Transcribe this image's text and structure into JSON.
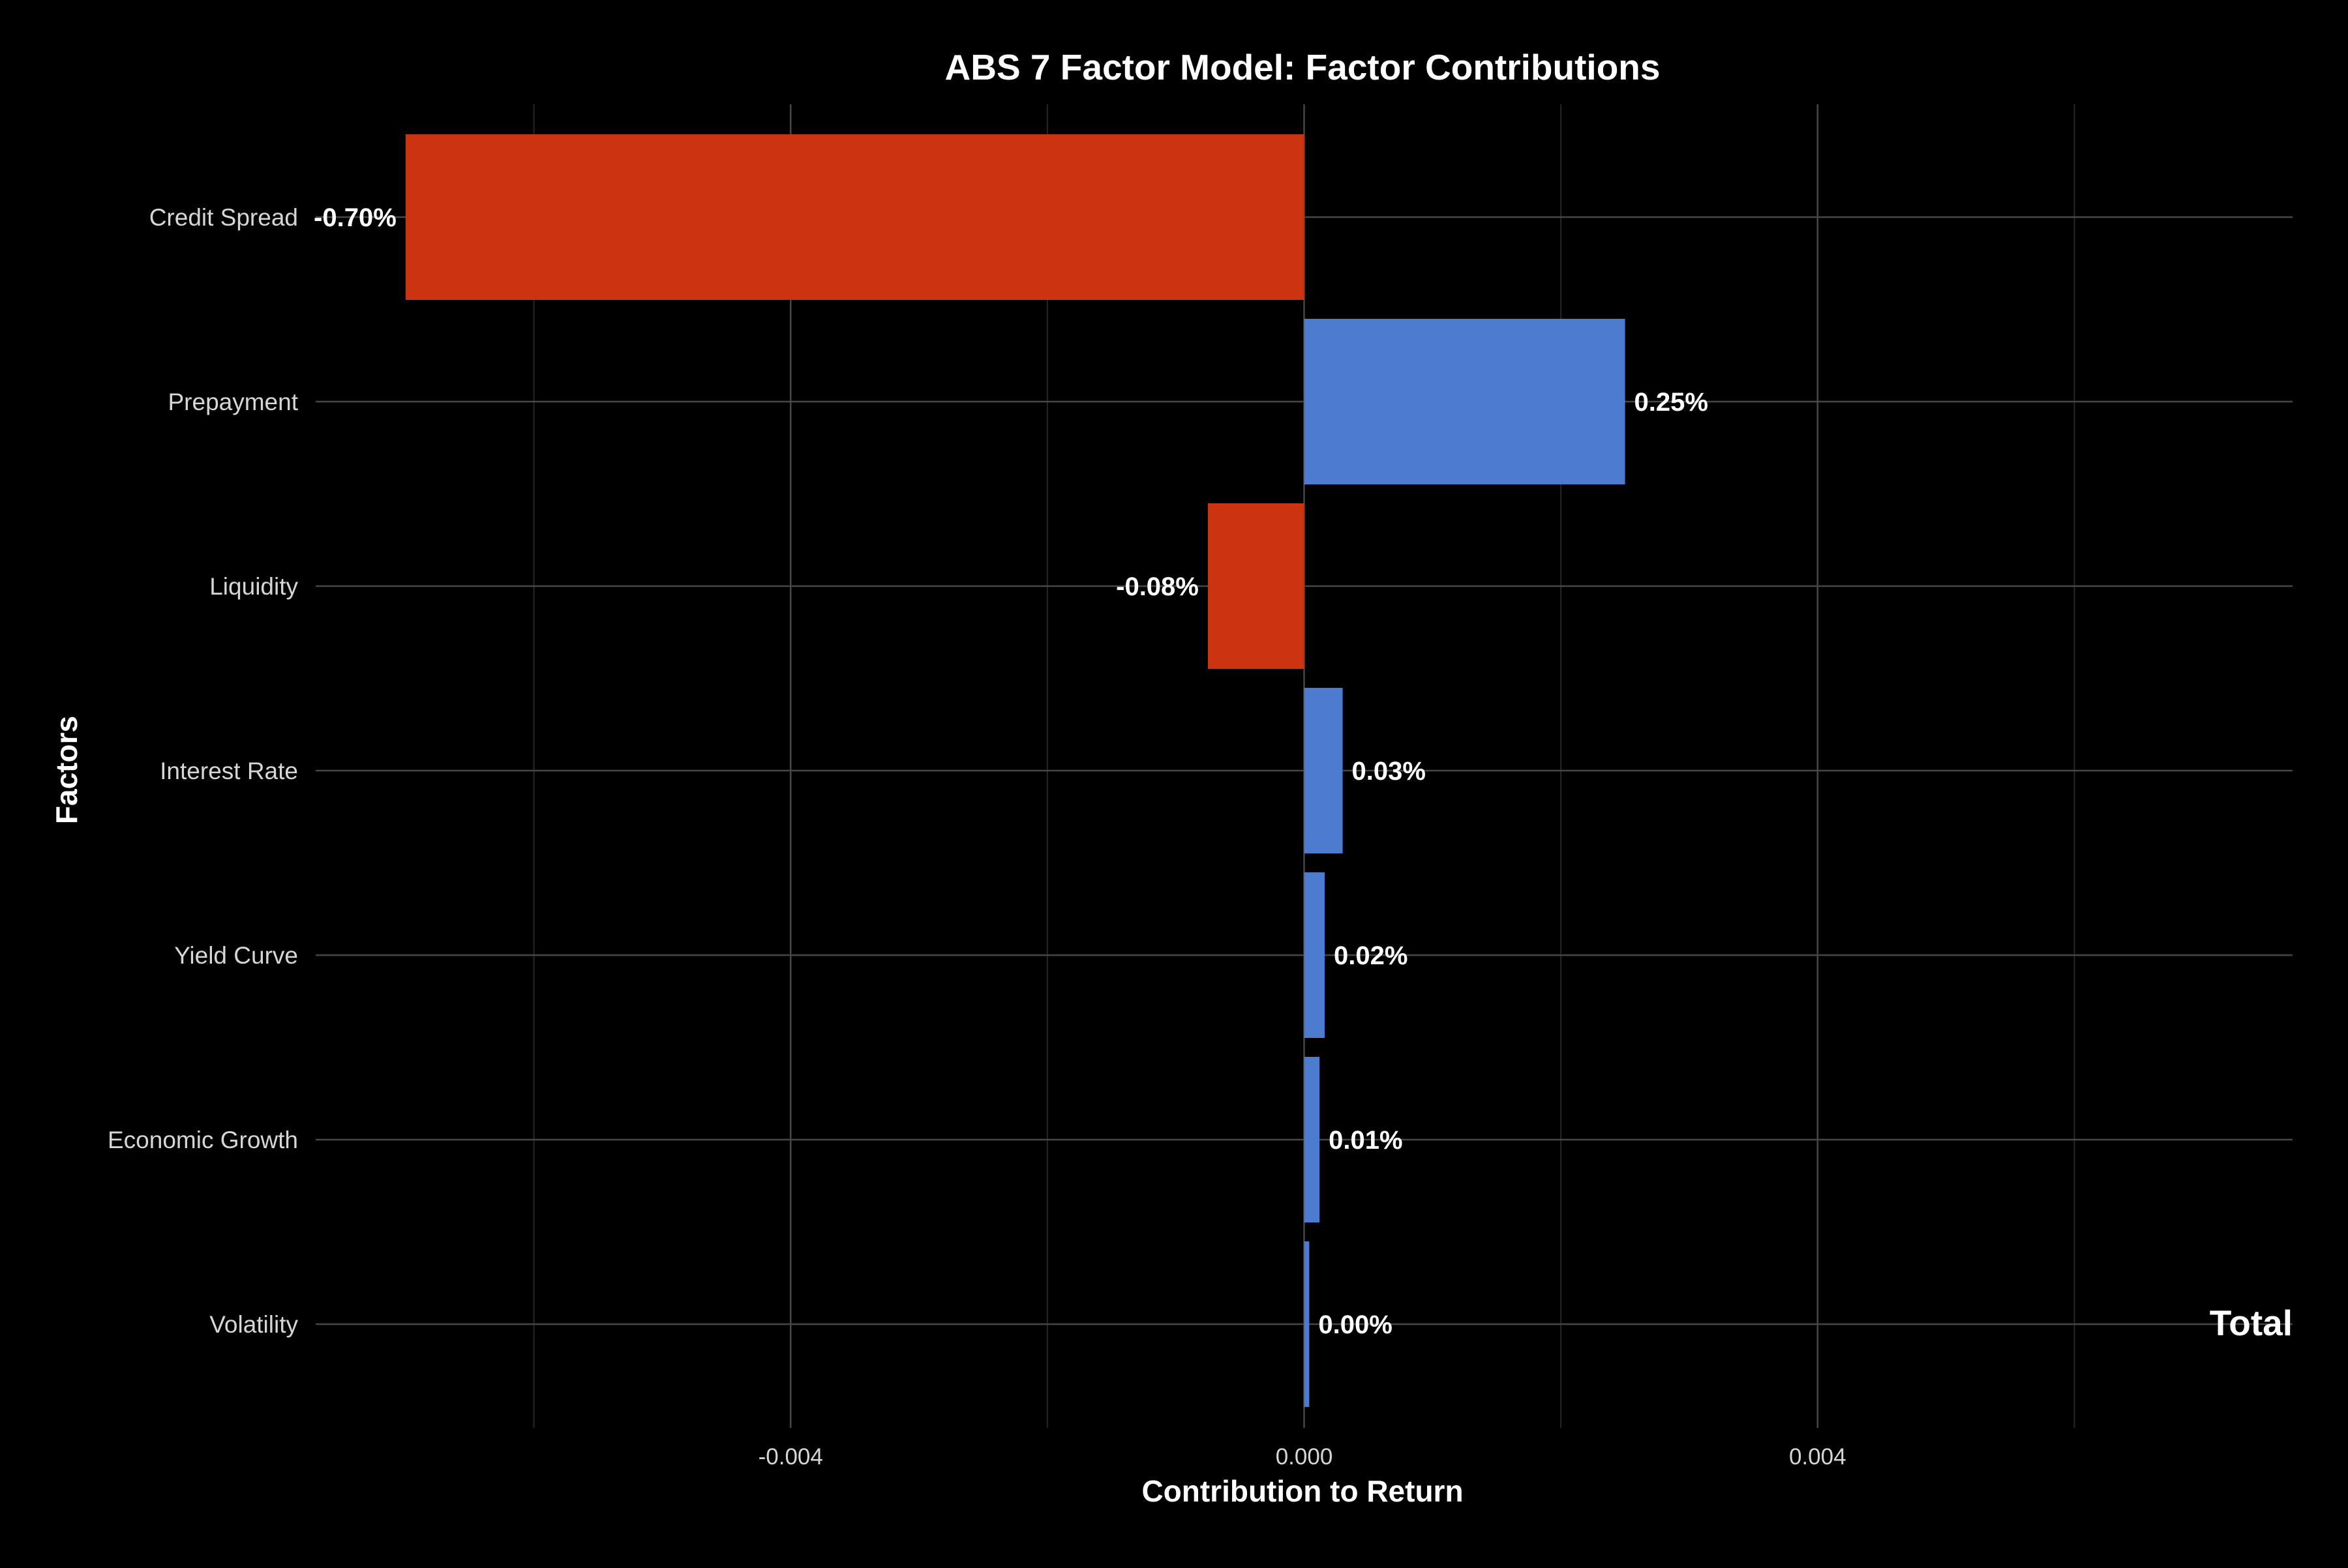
{
  "chart_data": {
    "type": "bar",
    "orientation": "horizontal",
    "title": "ABS 7 Factor Model: Factor Contributions",
    "xlabel": "Contribution to Return",
    "ylabel": "Factors",
    "categories": [
      "Credit Spread",
      "Prepayment",
      "Liquidity",
      "Interest Rate",
      "Yield Curve",
      "Economic Growth",
      "Volatility"
    ],
    "values": [
      -0.007,
      0.0025,
      -0.00075,
      0.0003,
      0.00016,
      0.00012,
      4e-05
    ],
    "data_labels": [
      "-0.70%",
      "0.25%",
      "-0.08%",
      "0.03%",
      "0.02%",
      "0.01%",
      "0.00%"
    ],
    "xlim": [
      -0.0077,
      0.0077
    ],
    "x_ticks": [
      -0.004,
      0.0,
      0.004
    ],
    "x_tick_labels": [
      "-0.004",
      "0.000",
      "0.004"
    ],
    "grid": true,
    "legend": "none",
    "annotation": "Total",
    "colors": {
      "positive": "#4d7ccf",
      "negative": "#cc3311",
      "background": "#000000"
    }
  }
}
